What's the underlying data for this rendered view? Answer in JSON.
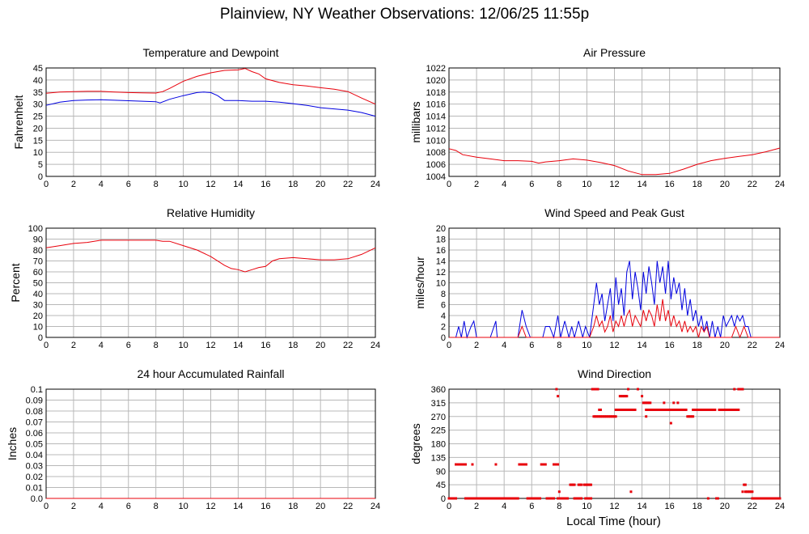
{
  "page": {
    "title": "Plainview, NY Weather Observations: 12/06/25 11:55p",
    "xaxis_label": "Local Time (hour)"
  },
  "chart_data": [
    {
      "id": "temp",
      "type": "line",
      "title": "Temperature and Dewpoint",
      "xlabel": "",
      "ylabel": "Fahrenheit",
      "xlim": [
        0,
        24
      ],
      "ylim": [
        0,
        45
      ],
      "xticks": [
        0,
        2,
        4,
        6,
        8,
        10,
        12,
        14,
        16,
        18,
        20,
        22,
        24
      ],
      "yticks": [
        0,
        5,
        10,
        15,
        20,
        25,
        30,
        35,
        40,
        45
      ],
      "yticklabels": [
        "0",
        "5",
        "10",
        "15",
        "20",
        "25",
        "30",
        "35",
        "40",
        "45"
      ],
      "grid": true,
      "series": [
        {
          "color": "#e8000b",
          "x": [
            0,
            1,
            2,
            3,
            4,
            5,
            6,
            7,
            8,
            8.5,
            9,
            10,
            11,
            12,
            13,
            14,
            14.5,
            15,
            15.5,
            16,
            17,
            18,
            19,
            20,
            21,
            22,
            23,
            24
          ],
          "y": [
            34.5,
            35,
            35.2,
            35.3,
            35.3,
            35,
            34.8,
            34.7,
            34.6,
            35.2,
            36.5,
            39.5,
            41.5,
            43,
            44,
            44.2,
            44.8,
            43.5,
            42.5,
            40.5,
            39,
            38,
            37.5,
            36.8,
            36.2,
            35.2,
            32.5,
            30
          ]
        },
        {
          "color": "#0000e0",
          "x": [
            0,
            1,
            2,
            3,
            4,
            5,
            6,
            7,
            8,
            8.3,
            9,
            10,
            11,
            11.5,
            12,
            12.5,
            13,
            14,
            15,
            16,
            17,
            18,
            19,
            20,
            21,
            22,
            23,
            24
          ],
          "y": [
            29.5,
            30.8,
            31.5,
            31.7,
            31.8,
            31.6,
            31.4,
            31.2,
            31,
            30.5,
            32,
            33.5,
            34.8,
            35,
            34.8,
            33.5,
            31.5,
            31.5,
            31.2,
            31.2,
            30.8,
            30.2,
            29.5,
            28.5,
            28,
            27.5,
            26.5,
            25
          ]
        }
      ]
    },
    {
      "id": "pressure",
      "type": "line",
      "title": "Air Pressure",
      "xlabel": "",
      "ylabel": "millibars",
      "xlim": [
        0,
        24
      ],
      "ylim": [
        1004,
        1022
      ],
      "xticks": [
        0,
        2,
        4,
        6,
        8,
        10,
        12,
        14,
        16,
        18,
        20,
        22,
        24
      ],
      "yticks": [
        1004,
        1006,
        1008,
        1010,
        1012,
        1014,
        1016,
        1018,
        1020,
        1022
      ],
      "yticklabels": [
        "1004",
        "1006",
        "1008",
        "1010",
        "1012",
        "1014",
        "1016",
        "1018",
        "1020",
        "1022"
      ],
      "grid": true,
      "series": [
        {
          "color": "#e8000b",
          "x": [
            0,
            0.5,
            1,
            2,
            3,
            4,
            5,
            6,
            6.5,
            7,
            8,
            9,
            10,
            11,
            12,
            13,
            14,
            15,
            16,
            17,
            18,
            19,
            20,
            21,
            22,
            23,
            24
          ],
          "y": [
            1008.6,
            1008.3,
            1007.6,
            1007.2,
            1006.9,
            1006.6,
            1006.6,
            1006.5,
            1006.2,
            1006.4,
            1006.6,
            1006.9,
            1006.7,
            1006.3,
            1005.8,
            1004.9,
            1004.3,
            1004.3,
            1004.5,
            1005.2,
            1006,
            1006.6,
            1007,
            1007.3,
            1007.6,
            1008.1,
            1008.7
          ]
        }
      ]
    },
    {
      "id": "humidity",
      "type": "line",
      "title": "Relative Humidity",
      "xlabel": "",
      "ylabel": "Percent",
      "xlim": [
        0,
        24
      ],
      "ylim": [
        0,
        100
      ],
      "xticks": [
        0,
        2,
        4,
        6,
        8,
        10,
        12,
        14,
        16,
        18,
        20,
        22,
        24
      ],
      "yticks": [
        0,
        10,
        20,
        30,
        40,
        50,
        60,
        70,
        80,
        90,
        100
      ],
      "yticklabels": [
        "0",
        "10",
        "20",
        "30",
        "40",
        "50",
        "60",
        "70",
        "80",
        "90",
        "100"
      ],
      "grid": true,
      "series": [
        {
          "color": "#e8000b",
          "x": [
            0,
            1,
            2,
            3,
            4,
            5,
            6,
            7,
            8,
            8.5,
            9,
            10,
            11,
            12,
            13,
            13.5,
            14,
            14.5,
            15,
            15.5,
            16,
            16.5,
            17,
            18,
            19,
            20,
            21,
            22,
            23,
            24
          ],
          "y": [
            82,
            84,
            86,
            87,
            89,
            89,
            89,
            89,
            89,
            88,
            88,
            84,
            80,
            74,
            66,
            63,
            62,
            60,
            62,
            64,
            65,
            70,
            72,
            73,
            72,
            71,
            71,
            72,
            76,
            82
          ]
        }
      ]
    },
    {
      "id": "wind",
      "type": "line",
      "title": "Wind Speed and Peak Gust",
      "xlabel": "",
      "ylabel": "miles/hour",
      "xlim": [
        0,
        24
      ],
      "ylim": [
        0,
        20
      ],
      "xticks": [
        0,
        2,
        4,
        6,
        8,
        10,
        12,
        14,
        16,
        18,
        20,
        22,
        24
      ],
      "yticks": [
        0,
        2,
        4,
        6,
        8,
        10,
        12,
        14,
        16,
        18,
        20
      ],
      "yticklabels": [
        "0",
        "2",
        "4",
        "6",
        "8",
        "10",
        "12",
        "14",
        "16",
        "18",
        "20"
      ],
      "grid": true,
      "series": [
        {
          "color": "#0000e0",
          "x": [
            0,
            0.5,
            0.7,
            0.9,
            1.1,
            1.3,
            1.6,
            1.8,
            2.0,
            3.0,
            3.4,
            3.5,
            5.0,
            5.3,
            5.6,
            5.9,
            6.8,
            7.0,
            7.3,
            7.6,
            7.9,
            8.1,
            8.4,
            8.7,
            8.9,
            9.1,
            9.4,
            9.7,
            9.9,
            10.2,
            10.5,
            10.7,
            10.9,
            11.1,
            11.3,
            11.5,
            11.7,
            11.9,
            12.1,
            12.3,
            12.5,
            12.7,
            12.9,
            13.1,
            13.3,
            13.5,
            13.7,
            13.9,
            14.1,
            14.3,
            14.5,
            14.7,
            14.9,
            15.1,
            15.3,
            15.5,
            15.7,
            15.9,
            16.1,
            16.3,
            16.5,
            16.7,
            16.9,
            17.1,
            17.3,
            17.5,
            17.7,
            17.9,
            18.1,
            18.3,
            18.5,
            18.7,
            18.9,
            19.1,
            19.3,
            19.5,
            19.7,
            19.9,
            20.1,
            20.3,
            20.5,
            20.7,
            20.9,
            21.1,
            21.3,
            21.5,
            21.7,
            21.9,
            24
          ],
          "y": [
            0,
            0,
            2,
            0,
            3,
            0,
            2,
            3,
            0,
            0,
            3,
            0,
            0,
            5,
            2,
            0,
            0,
            2,
            2,
            0,
            4,
            0,
            3,
            0,
            2,
            0,
            3,
            0,
            2,
            0,
            6,
            10,
            6,
            8,
            3,
            6,
            9,
            3,
            11,
            6,
            9,
            4,
            12,
            14,
            7,
            12,
            9,
            5,
            12,
            8,
            13,
            10,
            6,
            14,
            10,
            13,
            8,
            14,
            7,
            11,
            8,
            10,
            5,
            9,
            4,
            7,
            3,
            5,
            2,
            4,
            1,
            3,
            0,
            3,
            0,
            2,
            0,
            4,
            2,
            3,
            4,
            2,
            4,
            3,
            4,
            2,
            2,
            0,
            0
          ]
        },
        {
          "color": "#e8000b",
          "x": [
            0,
            5.0,
            5.3,
            5.6,
            10.2,
            10.5,
            10.7,
            10.9,
            11.1,
            11.3,
            11.5,
            11.7,
            11.9,
            12.1,
            12.3,
            12.5,
            12.7,
            12.9,
            13.1,
            13.3,
            13.5,
            13.7,
            13.9,
            14.1,
            14.3,
            14.5,
            14.7,
            14.9,
            15.1,
            15.3,
            15.5,
            15.7,
            15.9,
            16.1,
            16.3,
            16.5,
            16.7,
            16.9,
            17.1,
            17.3,
            17.5,
            17.7,
            17.9,
            18.1,
            18.3,
            18.5,
            18.7,
            18.9,
            19.1,
            20.5,
            20.8,
            21.1,
            21.4,
            21.7,
            21.9,
            24
          ],
          "y": [
            0,
            0,
            2,
            0,
            0,
            2,
            4,
            2,
            3,
            1,
            2,
            4,
            1,
            3,
            2,
            4,
            2,
            4,
            5,
            2,
            4,
            3,
            2,
            5,
            3,
            5,
            4,
            2,
            6,
            3,
            7,
            3,
            5,
            2,
            4,
            2,
            3,
            1,
            3,
            1,
            2,
            1,
            2,
            0,
            2,
            1,
            2,
            0,
            0,
            0,
            2,
            0,
            2,
            0,
            0,
            0
          ]
        }
      ]
    },
    {
      "id": "rain",
      "type": "line",
      "title": "24 hour Accumulated Rainfall",
      "xlabel": "",
      "ylabel": "Inches",
      "xlim": [
        0,
        24
      ],
      "ylim": [
        0,
        0.1
      ],
      "xticks": [
        0,
        2,
        4,
        6,
        8,
        10,
        12,
        14,
        16,
        18,
        20,
        22,
        24
      ],
      "yticks": [
        0,
        0.01,
        0.02,
        0.03,
        0.04,
        0.05,
        0.06,
        0.07,
        0.08,
        0.09,
        0.1
      ],
      "yticklabels": [
        "0.0",
        "0.01",
        "0.02",
        "0.03",
        "0.04",
        "0.05",
        "0.06",
        "0.07",
        "0.08",
        "0.09",
        "0.1"
      ],
      "grid": true,
      "series": [
        {
          "color": "#e8000b",
          "x": [
            0,
            24
          ],
          "y": [
            0,
            0
          ]
        }
      ]
    },
    {
      "id": "winddir",
      "type": "scatter",
      "title": "Wind Direction",
      "xlabel": "Local Time (hour)",
      "ylabel": "degrees",
      "xlim": [
        0,
        24
      ],
      "ylim": [
        0,
        360
      ],
      "xticks": [
        0,
        2,
        4,
        6,
        8,
        10,
        12,
        14,
        16,
        18,
        20,
        22,
        24
      ],
      "yticks": [
        0,
        45,
        90,
        135,
        180,
        225,
        270,
        315,
        360
      ],
      "yticklabels": [
        "0",
        "45",
        "90",
        "135",
        "180",
        "225",
        "270",
        "315",
        "360"
      ],
      "grid": true,
      "series": [
        {
          "color": "#e8000b",
          "segments": [
            {
              "y": 0,
              "x0": 0,
              "x1": 0.5
            },
            {
              "y": 112,
              "x0": 0.5,
              "x1": 1.2
            },
            {
              "y": 0,
              "x0": 1.2,
              "x1": 5.0
            },
            {
              "y": 112,
              "x0": 5.1,
              "x1": 5.6
            },
            {
              "y": 0,
              "x0": 5.7,
              "x1": 6.6
            },
            {
              "y": 112,
              "x0": 6.7,
              "x1": 7.0
            },
            {
              "y": 0,
              "x0": 7.1,
              "x1": 7.6
            },
            {
              "y": 112,
              "x0": 7.6,
              "x1": 7.9
            },
            {
              "y": 0,
              "x0": 8.0,
              "x1": 8.6
            },
            {
              "y": 0,
              "x0": 9.1,
              "x1": 9.6
            },
            {
              "y": 0,
              "x0": 9.9,
              "x1": 10.3
            },
            {
              "y": 45,
              "x0": 8.8,
              "x1": 9.1
            },
            {
              "y": 45,
              "x0": 9.4,
              "x1": 9.6
            },
            {
              "y": 45,
              "x0": 9.8,
              "x1": 10.3
            },
            {
              "y": 360,
              "x0": 10.4,
              "x1": 10.8
            },
            {
              "y": 270,
              "x0": 10.5,
              "x1": 12.1
            },
            {
              "y": 292,
              "x0": 12.1,
              "x1": 13.5
            },
            {
              "y": 337,
              "x0": 12.4,
              "x1": 12.9
            },
            {
              "y": 315,
              "x0": 14.1,
              "x1": 14.6
            },
            {
              "y": 292,
              "x0": 14.3,
              "x1": 17.2
            },
            {
              "y": 270,
              "x0": 17.3,
              "x1": 17.7
            },
            {
              "y": 292,
              "x0": 17.7,
              "x1": 19.3
            },
            {
              "y": 292,
              "x0": 19.6,
              "x1": 21.0
            },
            {
              "y": 360,
              "x0": 21.0,
              "x1": 21.3
            },
            {
              "y": 22,
              "x0": 21.5,
              "x1": 22.0
            },
            {
              "y": 0,
              "x0": 22.0,
              "x1": 24
            }
          ],
          "points": [
            [
              1.7,
              112
            ],
            [
              3.4,
              112
            ],
            [
              7.8,
              360
            ],
            [
              7.9,
              337
            ],
            [
              8.0,
              22
            ],
            [
              7.9,
              0
            ],
            [
              8.2,
              0
            ],
            [
              10.9,
              292
            ],
            [
              11.0,
              292
            ],
            [
              13.0,
              360
            ],
            [
              13.2,
              22
            ],
            [
              13.7,
              360
            ],
            [
              14.0,
              337
            ],
            [
              14.3,
              270
            ],
            [
              15.6,
              315
            ],
            [
              16.1,
              248
            ],
            [
              16.3,
              315
            ],
            [
              16.6,
              315
            ],
            [
              18.8,
              0
            ],
            [
              19.4,
              0
            ],
            [
              19.5,
              0
            ],
            [
              21.3,
              22
            ],
            [
              21.4,
              45
            ],
            [
              21.5,
              45
            ],
            [
              20.7,
              360
            ]
          ]
        }
      ]
    }
  ]
}
